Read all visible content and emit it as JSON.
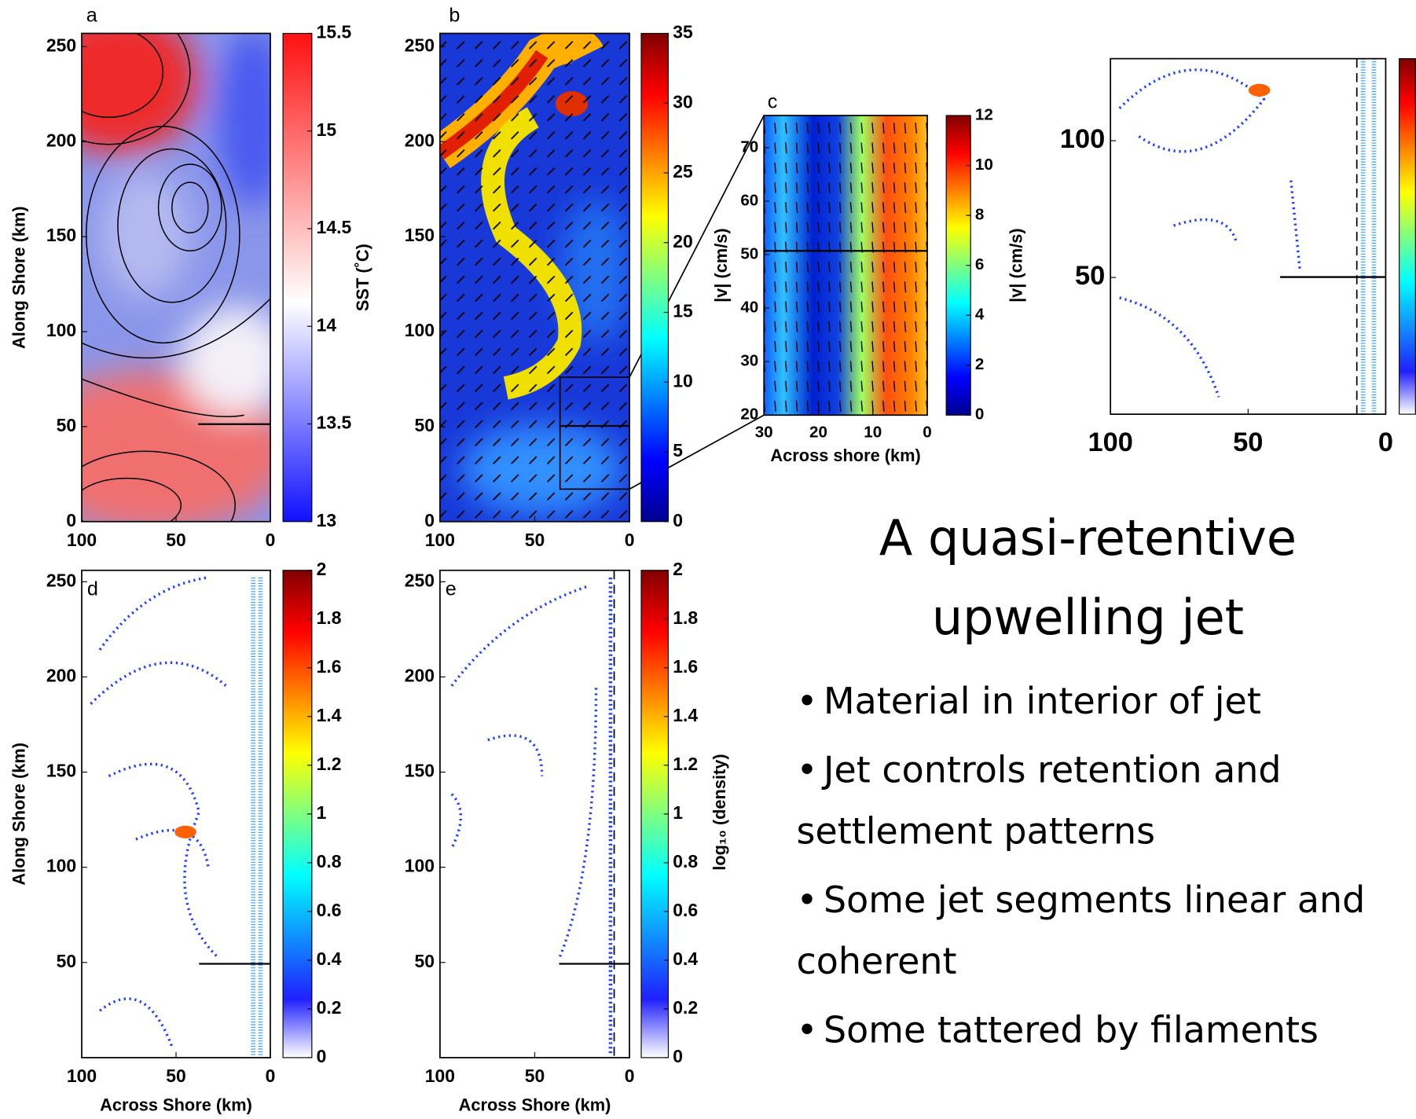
{
  "slide": {
    "title": [
      "A quasi-retentive",
      "upwelling jet"
    ],
    "bullets": [
      [
        "Material in interior of jet"
      ],
      [
        "Jet controls retention and",
        "settlement patterns"
      ],
      [
        "Some jet segments linear and",
        "coherent"
      ],
      [
        "Some tattered by filaments"
      ]
    ]
  },
  "chart_data": [
    {
      "type": "heatmap",
      "panel": "a",
      "ylabel": "Along Shore (km)",
      "xlim": [
        100,
        0
      ],
      "xticks": [
        100,
        50,
        0
      ],
      "ylim": [
        0,
        257
      ],
      "yticks": [
        0,
        50,
        100,
        150,
        200,
        250
      ],
      "colormap": "bwr",
      "clim": [
        13,
        15.5
      ],
      "cticks": [
        13,
        13.5,
        14,
        14.5,
        15,
        15.5
      ],
      "clabel": "SST (˚C)"
    },
    {
      "type": "heatmap",
      "panel": "b",
      "xlim": [
        100,
        0
      ],
      "xticks": [
        100,
        50,
        0
      ],
      "ylim": [
        0,
        257
      ],
      "yticks": [
        0,
        50,
        100,
        150,
        200,
        250
      ],
      "colormap": "jet",
      "clim": [
        0,
        35
      ],
      "cticks": [
        0,
        5,
        10,
        15,
        20,
        25,
        30,
        35
      ]
    },
    {
      "type": "heatmap",
      "panel": "c",
      "xlabel": "Across shore (km)",
      "ylabel": "|v| (cm/s)",
      "xlim": [
        30,
        0
      ],
      "xticks": [
        30,
        20,
        10,
        0
      ],
      "ylim": [
        20,
        76
      ],
      "yticks": [
        20,
        30,
        40,
        50,
        60,
        70
      ],
      "colormap": "jet",
      "clim": [
        0,
        12
      ],
      "cticks": [
        0,
        2,
        4,
        6,
        8,
        10,
        12
      ],
      "clabel": "|v| (cm/s)"
    },
    {
      "type": "heatmap",
      "panel": "d",
      "xlabel": "Across Shore (km)",
      "ylabel": "Along Shore (km)",
      "xlim": [
        100,
        0
      ],
      "xticks": [
        100,
        50,
        0
      ],
      "ylim": [
        0,
        256
      ],
      "yticks": [
        50,
        100,
        150,
        200,
        250
      ],
      "colormap": "jet-white",
      "clim": [
        0,
        2
      ],
      "cticks": [
        0,
        0.2,
        0.4,
        0.6,
        0.8,
        1,
        1.2,
        1.4,
        1.6,
        1.8,
        2
      ]
    },
    {
      "type": "heatmap",
      "panel": "e",
      "xlabel": "Across Shore (km)",
      "xlim": [
        100,
        0
      ],
      "xticks": [
        100,
        50,
        0
      ],
      "ylim": [
        0,
        256
      ],
      "yticks": [
        50,
        100,
        150,
        200,
        250
      ],
      "colormap": "jet-white",
      "clim": [
        0,
        2
      ],
      "cticks": [
        0,
        0.2,
        0.4,
        0.6,
        0.8,
        1,
        1.2,
        1.4,
        1.6,
        1.8,
        2
      ],
      "clabel": "log₁₀ (density)"
    },
    {
      "type": "heatmap",
      "xlim": [
        100,
        0
      ],
      "xticks": [
        100,
        50,
        0
      ],
      "ylim": [
        0,
        130
      ],
      "yticks": [
        50,
        100
      ],
      "colormap": "jet-white"
    }
  ]
}
